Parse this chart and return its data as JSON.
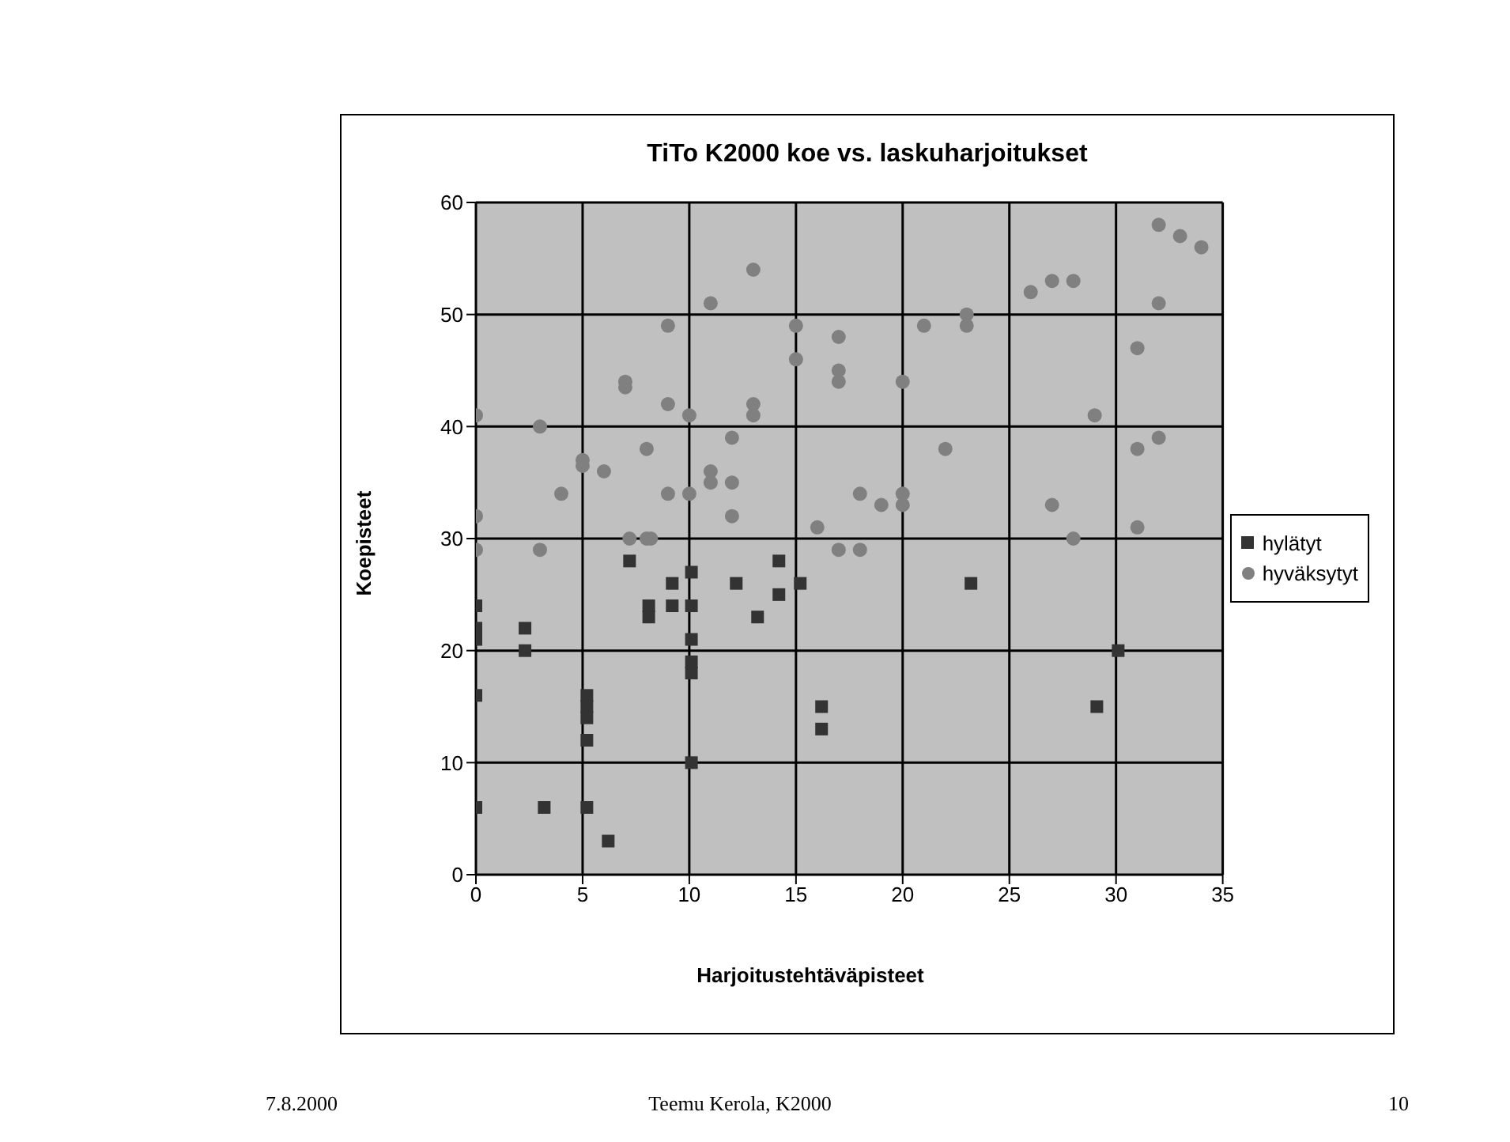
{
  "chart_data": {
    "type": "scatter",
    "title": "TiTo K2000 koe vs. laskuharjoitukset",
    "xlabel": "Harjoitustehtäväpisteet",
    "ylabel": "Koepisteet",
    "xlim": [
      0,
      35
    ],
    "xticks": [
      0,
      5,
      10,
      15,
      20,
      25,
      30,
      35
    ],
    "ylim": [
      0,
      60
    ],
    "yticks": [
      0,
      10,
      20,
      30,
      40,
      50,
      60
    ],
    "grid": true,
    "legend": "right",
    "series": [
      {
        "name": "hylätyt",
        "color": "#333333",
        "marker": "square",
        "x": [
          0,
          0,
          0,
          0,
          0,
          2.3,
          2.3,
          3.2,
          5.2,
          5.2,
          5.2,
          5.2,
          5.2,
          6.2,
          7.2,
          8.1,
          8.1,
          9.2,
          9.2,
          10.1,
          10.1,
          10.1,
          10.1,
          10.1,
          10.1,
          12.2,
          13.2,
          14.2,
          14.2,
          15.2,
          16.2,
          16.2,
          23.2,
          29.1,
          30.1
        ],
        "values": [
          24,
          22,
          21,
          16,
          6,
          22,
          20,
          6,
          16,
          15,
          14,
          12,
          6,
          3,
          28,
          24,
          23,
          26,
          24,
          24,
          27,
          21,
          19,
          18,
          10,
          26,
          23,
          28,
          25,
          26,
          15,
          13,
          26,
          15,
          20
        ]
      },
      {
        "name": "hyväksytyt",
        "color": "#808080",
        "marker": "circle",
        "x": [
          0,
          0,
          0,
          3,
          3,
          4,
          5,
          5,
          6,
          7,
          7,
          7.2,
          8,
          8,
          8.2,
          9,
          9,
          9,
          10,
          10,
          11,
          11,
          11,
          12,
          12,
          12,
          13,
          13,
          13,
          15,
          15,
          16,
          17,
          17,
          17,
          17,
          18,
          18,
          19,
          20,
          20,
          20,
          21,
          22,
          23,
          23,
          26,
          27,
          27,
          28,
          28,
          29,
          31,
          31,
          31,
          32,
          32,
          32,
          33,
          34
        ],
        "values": [
          41,
          32,
          29,
          40,
          29,
          34,
          37,
          36.5,
          36,
          44,
          43.5,
          30,
          38,
          30,
          30,
          49,
          42,
          34,
          41,
          34,
          51,
          36,
          35,
          39,
          35,
          32,
          54,
          42,
          41,
          49,
          46,
          31,
          48,
          45,
          44,
          29,
          34,
          29,
          33,
          44,
          34,
          33,
          49,
          38,
          50,
          49,
          52,
          53,
          33,
          53,
          30,
          41,
          47,
          38,
          31,
          58,
          51,
          39,
          57,
          56
        ]
      }
    ],
    "annotations": [
      "7.8.2000",
      "Teemu Kerola, K2000",
      "10"
    ]
  }
}
